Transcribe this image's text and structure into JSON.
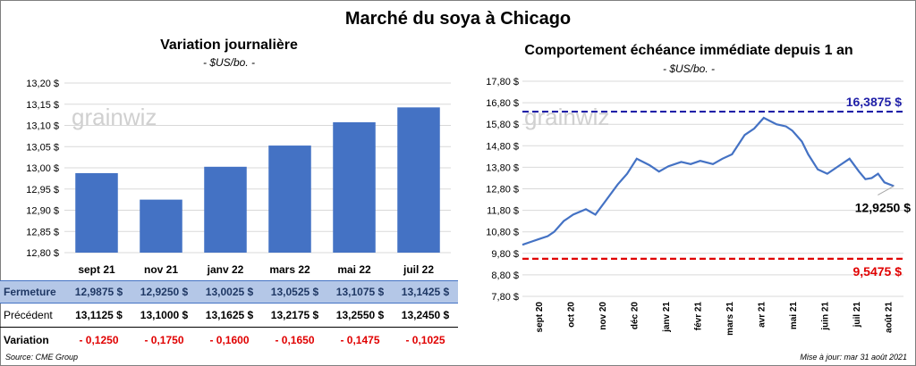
{
  "title": "Marché du soya à Chicago",
  "watermark": "grainwiz",
  "left_chart": {
    "title": "Variation journalière",
    "subtitle": "- $US/bo. -",
    "color": "#4472c4"
  },
  "right_chart": {
    "title": "Comportement  échéance immédiate depuis 1 an",
    "subtitle": "- $US/bo. -",
    "line_color": "#4472c4",
    "max_label": "16,3875 $",
    "min_label": "9,5475 $",
    "current_label": "12,9250 $",
    "max_color": "#1f1fa8",
    "min_color": "#e00000"
  },
  "table": {
    "rows": [
      {
        "label": "Fermeture",
        "values": [
          "12,9875  $",
          "12,9250  $",
          "13,0025  $",
          "13,0525  $",
          "13,1075  $",
          "13,1425  $"
        ]
      },
      {
        "label": "Précédent",
        "values": [
          "13,1125  $",
          "13,1000  $",
          "13,1625  $",
          "13,2175  $",
          "13,2550  $",
          "13,2450  $"
        ]
      },
      {
        "label": "Variation",
        "values": [
          "- 0,1250",
          "- 0,1750",
          "- 0,1600",
          "- 0,1650",
          "- 0,1475",
          "- 0,1025"
        ]
      }
    ]
  },
  "footer": {
    "source": "Source: CME Group",
    "updated": "Mise à jour: mar 31 août 2021"
  },
  "chart_data": [
    {
      "type": "bar",
      "categories": [
        "sept 21",
        "nov 21",
        "janv 22",
        "mars 22",
        "mai 22",
        "juil 22"
      ],
      "values": [
        12.9875,
        12.925,
        13.0025,
        13.0525,
        13.1075,
        13.1425
      ],
      "ylim": [
        12.8,
        13.2
      ],
      "yticks": [
        12.8,
        12.85,
        12.9,
        12.95,
        13.0,
        13.05,
        13.1,
        13.15,
        13.2
      ],
      "ytick_labels": [
        "12,80 $",
        "12,85 $",
        "12,90 $",
        "12,95 $",
        "13,00 $",
        "13,05 $",
        "13,10 $",
        "13,15 $",
        "13,20 $"
      ],
      "title": "Variation journalière",
      "ylabel": "- $US/bo. -"
    },
    {
      "type": "line",
      "title": "Comportement  échéance immédiate depuis 1 an",
      "ylabel": "- $US/bo. -",
      "ylim": [
        7.8,
        17.8
      ],
      "yticks": [
        7.8,
        8.8,
        9.8,
        10.8,
        11.8,
        12.8,
        13.8,
        14.8,
        15.8,
        16.8,
        17.8
      ],
      "ytick_labels": [
        "7,80 $",
        "8,80 $",
        "9,80 $",
        "10,80 $",
        "11,80 $",
        "12,80 $",
        "13,80 $",
        "14,80 $",
        "15,80 $",
        "16,80 $",
        "17,80 $"
      ],
      "x_labels": [
        "sept 20",
        "oct 20",
        "nov 20",
        "déc 20",
        "janv 21",
        "févr 21",
        "mars 21",
        "avr 21",
        "mai 21",
        "juin 21",
        "juil 21",
        "août 21"
      ],
      "x_months": 12,
      "series": [
        {
          "month_index": [
            0,
            0.3,
            0.5,
            0.8,
            1.0,
            1.3,
            1.6,
            2.0,
            2.3,
            2.6,
            3.0,
            3.3,
            3.6,
            4.0,
            4.3,
            4.6,
            5.0,
            5.3,
            5.6,
            6.0,
            6.3,
            6.6,
            7.0,
            7.3,
            7.6,
            8.0,
            8.3,
            8.5,
            8.8,
            9.0,
            9.3,
            9.6,
            10.0,
            10.3,
            10.6,
            10.8,
            11.0,
            11.2,
            11.4,
            11.7
          ],
          "values": [
            10.2,
            10.35,
            10.45,
            10.6,
            10.8,
            11.3,
            11.6,
            11.85,
            11.6,
            12.2,
            13.0,
            13.5,
            14.2,
            13.9,
            13.6,
            13.85,
            14.05,
            13.95,
            14.1,
            13.95,
            14.2,
            14.4,
            15.3,
            15.6,
            16.1,
            15.8,
            15.7,
            15.5,
            15.0,
            14.4,
            13.7,
            13.5,
            13.9,
            14.2,
            13.6,
            13.25,
            13.3,
            13.5,
            13.1,
            12.925
          ]
        }
      ],
      "reference_lines": [
        {
          "label": "16,3875 $",
          "value": 16.3875
        },
        {
          "label": "9,5475 $",
          "value": 9.5475
        }
      ],
      "current": {
        "label": "12,9250 $",
        "value": 12.925
      }
    }
  ]
}
